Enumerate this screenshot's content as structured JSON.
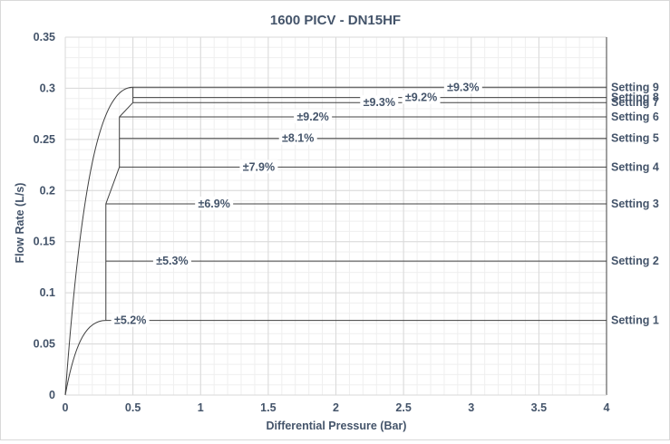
{
  "chart_data": {
    "type": "line",
    "title": "1600 PICV - DN15HF",
    "xlabel": "Differential Pressure (Bar)",
    "ylabel": "Flow Rate (L/s)",
    "xlim": [
      0,
      4
    ],
    "ylim": [
      0,
      0.35
    ],
    "xticks": [
      "0",
      "0.5",
      "1",
      "1.5",
      "2",
      "2.5",
      "3",
      "3.5",
      "4"
    ],
    "yticks": [
      "0",
      "0.05",
      "0.1",
      "0.15",
      "0.2",
      "0.25",
      "0.3",
      "0.35"
    ],
    "grid": true,
    "series": [
      {
        "name": "Setting 1",
        "start_pressure": 0.3,
        "flow": 0.073,
        "tolerance": "±5.2%",
        "tolerance_at": 0.48
      },
      {
        "name": "Setting 2",
        "start_pressure": 0.3,
        "flow": 0.131,
        "tolerance": "±5.3%",
        "tolerance_at": 0.79
      },
      {
        "name": "Setting 3",
        "start_pressure": 0.3,
        "flow": 0.187,
        "tolerance": "±6.9%",
        "tolerance_at": 1.1
      },
      {
        "name": "Setting 4",
        "start_pressure": 0.4,
        "flow": 0.223,
        "tolerance": "±7.9%",
        "tolerance_at": 1.43
      },
      {
        "name": "Setting 5",
        "start_pressure": 0.4,
        "flow": 0.251,
        "tolerance": "±8.1%",
        "tolerance_at": 1.72
      },
      {
        "name": "Setting 6",
        "start_pressure": 0.4,
        "flow": 0.272,
        "tolerance": "±9.2%",
        "tolerance_at": 1.83
      },
      {
        "name": "Setting 7",
        "start_pressure": 0.5,
        "flow": 0.286,
        "tolerance": "±9.3%",
        "tolerance_at": 2.32
      },
      {
        "name": "Setting 8",
        "start_pressure": 0.5,
        "flow": 0.291,
        "tolerance": "±9.2%",
        "tolerance_at": 2.63
      },
      {
        "name": "Setting 9",
        "start_pressure": 0.5,
        "flow": 0.301,
        "tolerance": "±9.3%",
        "tolerance_at": 2.94
      }
    ],
    "envelope": [
      {
        "pressure": 0.3,
        "flow": 0.073
      },
      {
        "pressure": 0.3,
        "flow": 0.187
      },
      {
        "pressure": 0.4,
        "flow": 0.223
      },
      {
        "pressure": 0.4,
        "flow": 0.272
      },
      {
        "pressure": 0.5,
        "flow": 0.286
      },
      {
        "pressure": 0.5,
        "flow": 0.301
      }
    ],
    "colors": {
      "line": "#404040",
      "text": "#44546a",
      "grid_major": "#d9d9d9",
      "grid_minor": "#efefef"
    }
  }
}
